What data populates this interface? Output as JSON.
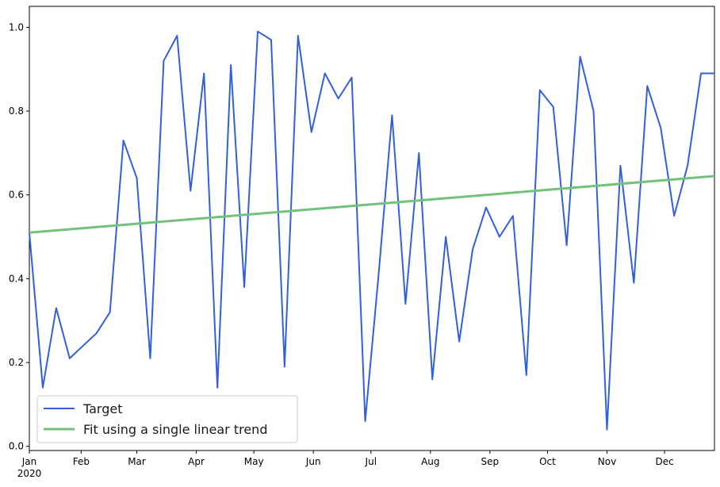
{
  "chart_data": {
    "type": "line",
    "title": "",
    "xlabel": "",
    "ylabel": "",
    "x": [
      "2020-01-05",
      "2020-01-12",
      "2020-01-19",
      "2020-01-26",
      "2020-02-02",
      "2020-02-09",
      "2020-02-16",
      "2020-02-23",
      "2020-03-01",
      "2020-03-08",
      "2020-03-15",
      "2020-03-22",
      "2020-03-29",
      "2020-04-05",
      "2020-04-12",
      "2020-04-19",
      "2020-04-26",
      "2020-05-03",
      "2020-05-10",
      "2020-05-17",
      "2020-05-24",
      "2020-05-31",
      "2020-06-07",
      "2020-06-14",
      "2020-06-21",
      "2020-06-28",
      "2020-07-05",
      "2020-07-12",
      "2020-07-19",
      "2020-07-26",
      "2020-08-02",
      "2020-08-09",
      "2020-08-16",
      "2020-08-23",
      "2020-08-30",
      "2020-09-06",
      "2020-09-13",
      "2020-09-20",
      "2020-09-27",
      "2020-10-04",
      "2020-10-11",
      "2020-10-18",
      "2020-10-25",
      "2020-11-01",
      "2020-11-08",
      "2020-11-15",
      "2020-11-22",
      "2020-11-29",
      "2020-12-06",
      "2020-12-13",
      "2020-12-20",
      "2020-12-27"
    ],
    "series": [
      {
        "name": "Target",
        "color": "#3160d8",
        "values": [
          0.51,
          0.14,
          0.33,
          0.21,
          0.24,
          0.27,
          0.32,
          0.73,
          0.64,
          0.21,
          0.92,
          0.98,
          0.61,
          0.89,
          0.14,
          0.91,
          0.38,
          0.99,
          0.97,
          0.19,
          0.98,
          0.75,
          0.89,
          0.83,
          0.88,
          0.06,
          0.41,
          0.79,
          0.34,
          0.7,
          0.16,
          0.5,
          0.25,
          0.47,
          0.57,
          0.5,
          0.55,
          0.17,
          0.85,
          0.81,
          0.48,
          0.93,
          0.8,
          0.04,
          0.67,
          0.39,
          0.86,
          0.76,
          0.55,
          0.67,
          0.89,
          0.89
        ]
      },
      {
        "name": "Fit using a single linear trend",
        "color": "#72c17d",
        "start": {
          "x": "2020-01-05",
          "y": 0.51
        },
        "end": {
          "x": "2020-12-27",
          "y": 0.645
        }
      }
    ],
    "x_ticks": [
      {
        "date": "2020-01-01",
        "label": "Jan",
        "sublabel": "2020"
      },
      {
        "date": "2020-02-01",
        "label": "Feb",
        "sublabel": ""
      },
      {
        "date": "2020-03-01",
        "label": "Mar",
        "sublabel": ""
      },
      {
        "date": "2020-04-01",
        "label": "Apr",
        "sublabel": ""
      },
      {
        "date": "2020-05-01",
        "label": "May",
        "sublabel": ""
      },
      {
        "date": "2020-06-01",
        "label": "Jun",
        "sublabel": ""
      },
      {
        "date": "2020-07-01",
        "label": "Jul",
        "sublabel": ""
      },
      {
        "date": "2020-08-01",
        "label": "Aug",
        "sublabel": ""
      },
      {
        "date": "2020-09-01",
        "label": "Sep",
        "sublabel": ""
      },
      {
        "date": "2020-10-01",
        "label": "Oct",
        "sublabel": ""
      },
      {
        "date": "2020-11-01",
        "label": "Nov",
        "sublabel": ""
      },
      {
        "date": "2020-12-01",
        "label": "Dec",
        "sublabel": ""
      }
    ],
    "y_ticks": [
      "0.0",
      "0.2",
      "0.4",
      "0.6",
      "0.8",
      "1.0"
    ],
    "xlim": [
      "2020-01-05",
      "2020-12-27"
    ],
    "ylim": [
      -0.01,
      1.05
    ],
    "grid": false,
    "legend_position": "lower-left"
  }
}
